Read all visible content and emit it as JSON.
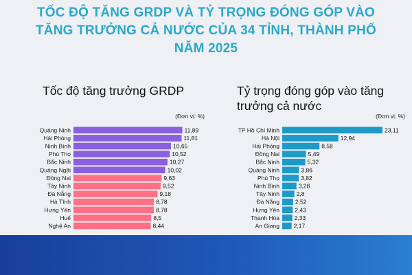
{
  "header": {
    "title_lines": [
      "TỐC ĐỘ TĂNG GRDP VÀ TỶ TRỌNG ĐÓNG GÓP VÀO",
      "TĂNG TRƯỞNG CẢ NƯỚC CỦA 34 TỈNH, THÀNH PHỐ",
      "NĂM 2025"
    ]
  },
  "colors": {
    "title": "#2aa8c9",
    "purple": "#8a5fe0",
    "pink": "#ff6f86",
    "blue": "#1e9ac7",
    "footer": "#1f58b8"
  },
  "chart_data": [
    {
      "type": "bar",
      "orientation": "horizontal",
      "title": "Tốc độ tăng trưởng GRDP",
      "unit": "(Đơn vị: %)",
      "categories": [
        "Quảng Ninh",
        "Hải Phòng",
        "Ninh Bình",
        "Phú Thọ",
        "Bắc Ninh",
        "Quảng Ngãi",
        "Đồng Nai",
        "Tây Ninh",
        "Đà Nẵng",
        "Hà Tĩnh",
        "Hưng Yên",
        "Huế",
        "Nghệ An"
      ],
      "values": [
        11.89,
        11.81,
        10.65,
        10.52,
        10.27,
        10.02,
        9.63,
        9.52,
        9.18,
        8.78,
        8.78,
        8.5,
        8.44
      ],
      "labels": [
        "11,89",
        "11,81",
        "10,65",
        "10,52",
        "10,27",
        "10,02",
        "9,63",
        "9,52",
        "9,18",
        "8,78",
        "8,78",
        "8,5",
        "8,44"
      ],
      "bar_colors": [
        "#8a5fe0",
        "#8a5fe0",
        "#8a5fe0",
        "#8a5fe0",
        "#8a5fe0",
        "#8a5fe0",
        "#ff6f86",
        "#ff6f86",
        "#ff6f86",
        "#ff6f86",
        "#ff6f86",
        "#ff6f86",
        "#ff6f86"
      ],
      "xlim": [
        0,
        12
      ]
    },
    {
      "type": "bar",
      "orientation": "horizontal",
      "title": "Tỷ trọng đóng góp vào tăng trưởng cả nước",
      "unit": "(Đơn vị: %)",
      "categories": [
        "TP Hồ Chí Minh",
        "Hà Nội",
        "Hải Phòng",
        "Đồng Nai",
        "Bắc Ninh",
        "Quảng Ninh",
        "Phú Thọ",
        "Ninh Bình",
        "Tây Ninh",
        "Đà Nẵng",
        "Hưng Yên",
        "Thanh Hóa",
        "An Giang"
      ],
      "values": [
        23.11,
        12.94,
        8.58,
        5.49,
        5.32,
        3.86,
        3.82,
        3.28,
        2.8,
        2.52,
        2.43,
        2.33,
        2.17
      ],
      "labels": [
        "23,11",
        "12,94",
        "8,58",
        "5,49",
        "5,32",
        "3,86",
        "3,82",
        "3,28",
        "2,8",
        "2,52",
        "2,43",
        "2,33",
        "2,17"
      ],
      "bar_colors": [
        "#1e9ac7"
      ],
      "xlim": [
        0,
        23.11
      ]
    }
  ]
}
